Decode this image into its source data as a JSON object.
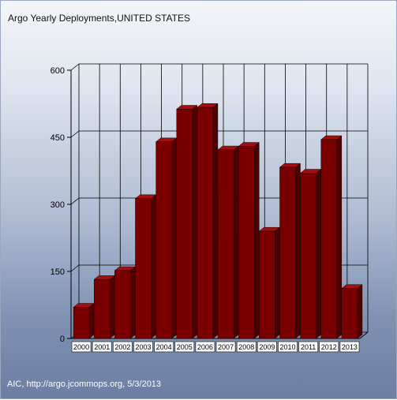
{
  "title": "Argo Yearly Deployments,UNITED STATES",
  "footer": "AIC, http://argo.jcommops.org, 5/3/2013",
  "colors": {
    "bar_front": "#7a0000",
    "bar_side": "#4d0000",
    "bar_top": "#a30f0f",
    "gridline": "#000000"
  },
  "chart_data": {
    "type": "bar",
    "categories": [
      "2000",
      "2001",
      "2002",
      "2003",
      "2004",
      "2005",
      "2006",
      "2007",
      "2008",
      "2009",
      "2010",
      "2011",
      "2012",
      "2013"
    ],
    "values": [
      70,
      132,
      152,
      313,
      440,
      513,
      517,
      422,
      430,
      240,
      383,
      370,
      445,
      112
    ],
    "ylim": [
      0,
      600
    ],
    "yticks": [
      0,
      150,
      300,
      450,
      600
    ],
    "grid": true,
    "legend": "none"
  }
}
